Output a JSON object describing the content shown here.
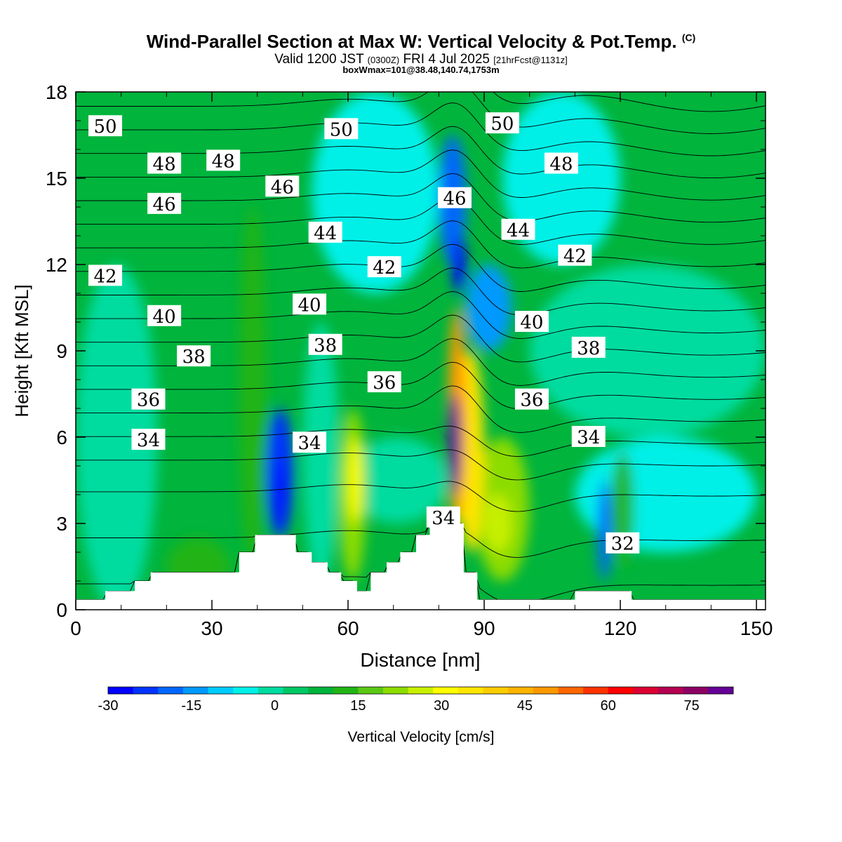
{
  "header": {
    "title": "Wind-Parallel Section at Max W: Vertical Velocity & Pot.Temp.",
    "copyright": "(C)",
    "valid_prefix": "Valid 1200 JST",
    "valid_utc": "(0300Z)",
    "valid_date": "FRI 4 Jul 2025",
    "forecast": "[21hrFcst@1131z]",
    "boxwmax": "boxWmax=101@38.48,140.74,1753m"
  },
  "chart_data": {
    "type": "heatmap",
    "xlabel": "Distance [nm]",
    "ylabel": "Height [Kft MSL]",
    "xlim": [
      0,
      152
    ],
    "ylim": [
      0,
      18
    ],
    "xticks": [
      0,
      30,
      60,
      90,
      120,
      150
    ],
    "yticks": [
      0,
      3,
      6,
      9,
      12,
      15,
      18
    ],
    "colorbar": {
      "label": "Vertical Velocity [cm/s]",
      "min": -30,
      "max": 87,
      "step": 4.5,
      "tick_values": [
        -30,
        -15,
        0,
        15,
        30,
        45,
        60,
        75
      ],
      "tick_labels": [
        "-30",
        "-15",
        "0",
        "15",
        "30",
        "45",
        "60",
        "75"
      ],
      "colors": [
        "#0000ff",
        "#0033ff",
        "#0066ff",
        "#0099ff",
        "#00ccff",
        "#00f0e8",
        "#00dca0",
        "#00c864",
        "#00b43c",
        "#22b414",
        "#5ac814",
        "#8cdc00",
        "#c8f000",
        "#ffff00",
        "#ffe600",
        "#ffcc00",
        "#ffb300",
        "#ff9900",
        "#ff6600",
        "#ff3300",
        "#ff0000",
        "#dc0032",
        "#b40050",
        "#8c0064",
        "#640096"
      ]
    },
    "vertical_velocity_cells": [
      {
        "x0": 0,
        "x1": 152,
        "y0": 0,
        "y1": 18,
        "value": 8
      },
      {
        "x0": 0,
        "x1": 18,
        "y0": 0,
        "y1": 12,
        "value": 1
      },
      {
        "x0": 50,
        "x1": 58,
        "y0": 1,
        "y1": 10,
        "value": 0
      },
      {
        "x0": 60,
        "x1": 82,
        "y0": 3,
        "y1": 6,
        "value": -3
      },
      {
        "x0": 52,
        "x1": 80,
        "y0": 11,
        "y1": 18,
        "value": -5
      },
      {
        "x0": 94,
        "x1": 120,
        "y0": 12,
        "y1": 18,
        "value": -6
      },
      {
        "x0": 110,
        "x1": 150,
        "y0": 2,
        "y1": 6,
        "value": -6
      },
      {
        "x0": 100,
        "x1": 152,
        "y0": 6,
        "y1": 12,
        "value": -2
      },
      {
        "x0": 36,
        "x1": 42,
        "y0": 1.5,
        "y1": 14,
        "value": 14
      },
      {
        "x0": 20,
        "x1": 34,
        "y0": 0.5,
        "y1": 2.5,
        "value": 12
      },
      {
        "x0": 58,
        "x1": 64,
        "y0": 1,
        "y1": 7,
        "value": 22
      },
      {
        "x0": 60,
        "x1": 63,
        "y0": 3,
        "y1": 6,
        "value": 30
      },
      {
        "x0": 42,
        "x1": 48,
        "y0": 2.5,
        "y1": 7,
        "value": -22
      },
      {
        "x0": 44,
        "x1": 46,
        "y0": 2.8,
        "y1": 5,
        "value": -30
      },
      {
        "x0": 80,
        "x1": 86,
        "y0": 12,
        "y1": 16.5,
        "value": -18
      },
      {
        "x0": 83,
        "x1": 86,
        "y0": 11,
        "y1": 13,
        "value": -28
      },
      {
        "x0": 86,
        "x1": 96,
        "y0": 9,
        "y1": 12,
        "value": -14
      },
      {
        "x0": 88,
        "x1": 100,
        "y0": 1,
        "y1": 6,
        "value": 20
      },
      {
        "x0": 90,
        "x1": 96,
        "y0": 2,
        "y1": 4,
        "value": 28
      },
      {
        "x0": 84,
        "x1": 90,
        "y0": 2,
        "y1": 9,
        "value": 35
      },
      {
        "x0": 82,
        "x1": 86,
        "y0": 3,
        "y1": 10.5,
        "value": 50
      },
      {
        "x0": 82,
        "x1": 85,
        "y0": 4,
        "y1": 7.5,
        "value": 80
      },
      {
        "x0": 115,
        "x1": 118,
        "y0": 1,
        "y1": 4.5,
        "value": -20
      },
      {
        "x0": 118,
        "x1": 123,
        "y0": 1.5,
        "y1": 5.5,
        "value": 12
      }
    ],
    "terrain_height_kft": [
      {
        "x": 0,
        "h": 0.35
      },
      {
        "x": 6.5,
        "h": 0.65
      },
      {
        "x": 13,
        "h": 1.0
      },
      {
        "x": 16.5,
        "h": 1.3
      },
      {
        "x": 36,
        "h": 2.0
      },
      {
        "x": 39.5,
        "h": 2.6
      },
      {
        "x": 48.5,
        "h": 2.0
      },
      {
        "x": 52,
        "h": 1.65
      },
      {
        "x": 55.5,
        "h": 1.3
      },
      {
        "x": 58.5,
        "h": 1.0
      },
      {
        "x": 62,
        "h": 0.65
      },
      {
        "x": 65,
        "h": 1.3
      },
      {
        "x": 68.5,
        "h": 1.65
      },
      {
        "x": 71.5,
        "h": 2.0
      },
      {
        "x": 75,
        "h": 2.6
      },
      {
        "x": 78,
        "h": 3.0
      },
      {
        "x": 85.5,
        "h": 1.3
      },
      {
        "x": 88.5,
        "h": 0.35
      },
      {
        "x": 110,
        "h": 0.65
      },
      {
        "x": 122.5,
        "h": 0.35
      },
      {
        "x": 152,
        "h": 0.35
      }
    ],
    "potential_temperature": {
      "contour_interval": 1,
      "contour_labels": [
        {
          "text": "50",
          "x": 6.5,
          "y": 16.8
        },
        {
          "text": "50",
          "x": 58.5,
          "y": 16.7
        },
        {
          "text": "50",
          "x": 94,
          "y": 16.9
        },
        {
          "text": "48",
          "x": 19.5,
          "y": 15.5
        },
        {
          "text": "48",
          "x": 32.5,
          "y": 15.6
        },
        {
          "text": "48",
          "x": 107,
          "y": 15.5
        },
        {
          "text": "46",
          "x": 19.5,
          "y": 14.1
        },
        {
          "text": "46",
          "x": 45.5,
          "y": 14.7
        },
        {
          "text": "46",
          "x": 83.5,
          "y": 14.3
        },
        {
          "text": "44",
          "x": 55,
          "y": 13.1
        },
        {
          "text": "44",
          "x": 97.5,
          "y": 13.2
        },
        {
          "text": "42",
          "x": 6.5,
          "y": 11.6
        },
        {
          "text": "42",
          "x": 68,
          "y": 11.9
        },
        {
          "text": "42",
          "x": 110,
          "y": 12.3
        },
        {
          "text": "40",
          "x": 19.5,
          "y": 10.2
        },
        {
          "text": "40",
          "x": 51.5,
          "y": 10.6
        },
        {
          "text": "40",
          "x": 100.5,
          "y": 10.0
        },
        {
          "text": "38",
          "x": 26,
          "y": 8.8
        },
        {
          "text": "38",
          "x": 55,
          "y": 9.2
        },
        {
          "text": "38",
          "x": 113,
          "y": 9.1
        },
        {
          "text": "36",
          "x": 16,
          "y": 7.3
        },
        {
          "text": "36",
          "x": 68,
          "y": 7.9
        },
        {
          "text": "36",
          "x": 100.5,
          "y": 7.3
        },
        {
          "text": "34",
          "x": 16,
          "y": 5.9
        },
        {
          "text": "34",
          "x": 51.5,
          "y": 5.8
        },
        {
          "text": "34",
          "x": 81,
          "y": 3.2
        },
        {
          "text": "34",
          "x": 113,
          "y": 6.0
        },
        {
          "text": "32",
          "x": 120.5,
          "y": 2.3
        }
      ]
    }
  }
}
